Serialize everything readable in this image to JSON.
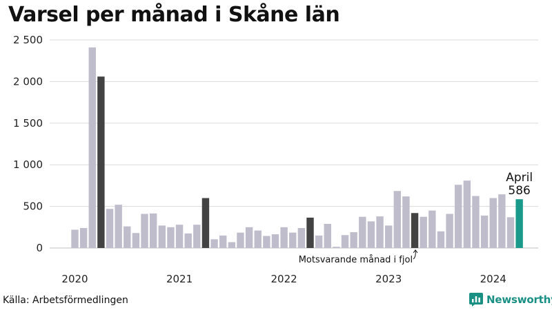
{
  "chart_data": {
    "type": "bar",
    "title": "Varsel per månad i Skåne län",
    "source": "Källa: Arbetsförmedlingen",
    "brand": "Newsworthy",
    "ylim": [
      0,
      2500
    ],
    "y_ticks": [
      0,
      500,
      1000,
      1500,
      2000,
      2500
    ],
    "y_tick_labels": [
      "0",
      "500",
      "1 000",
      "1 500",
      "2 000",
      "2 500"
    ],
    "grid": true,
    "x_year_labels": [
      {
        "label": "2020",
        "at_index": 0
      },
      {
        "label": "2021",
        "at_index": 12
      },
      {
        "label": "2022",
        "at_index": 24
      },
      {
        "label": "2023",
        "at_index": 36
      },
      {
        "label": "2024",
        "at_index": 48
      }
    ],
    "months": [
      "2020-01",
      "2020-02",
      "2020-03",
      "2020-04",
      "2020-05",
      "2020-06",
      "2020-07",
      "2020-08",
      "2020-09",
      "2020-10",
      "2020-11",
      "2020-12",
      "2021-01",
      "2021-02",
      "2021-03",
      "2021-04",
      "2021-05",
      "2021-06",
      "2021-07",
      "2021-08",
      "2021-09",
      "2021-10",
      "2021-11",
      "2021-12",
      "2022-01",
      "2022-02",
      "2022-03",
      "2022-04",
      "2022-05",
      "2022-06",
      "2022-07",
      "2022-08",
      "2022-09",
      "2022-10",
      "2022-11",
      "2022-12",
      "2023-01",
      "2023-02",
      "2023-03",
      "2023-04",
      "2023-05",
      "2023-06",
      "2023-07",
      "2023-08",
      "2023-09",
      "2023-10",
      "2023-11",
      "2023-12",
      "2024-01",
      "2024-02",
      "2024-03",
      "2024-04"
    ],
    "values": [
      220,
      240,
      2410,
      2060,
      470,
      520,
      260,
      180,
      410,
      415,
      270,
      250,
      280,
      175,
      280,
      600,
      105,
      150,
      70,
      185,
      250,
      210,
      145,
      165,
      250,
      185,
      240,
      365,
      150,
      290,
      15,
      155,
      190,
      375,
      320,
      380,
      270,
      685,
      620,
      420,
      375,
      450,
      200,
      410,
      760,
      810,
      625,
      390,
      600,
      645,
      370,
      586
    ],
    "highlight_same_month": [
      "2020-04",
      "2021-04",
      "2022-04",
      "2023-04"
    ],
    "current_month": "2024-04",
    "colors": {
      "normal": "#bfbdcc",
      "same_month": "#434343",
      "current": "#1a9a8a",
      "grid": "#d9d9d9"
    },
    "callout": {
      "label": "April",
      "value": "586"
    },
    "annotation": "Motsvarande månad i fjol"
  }
}
